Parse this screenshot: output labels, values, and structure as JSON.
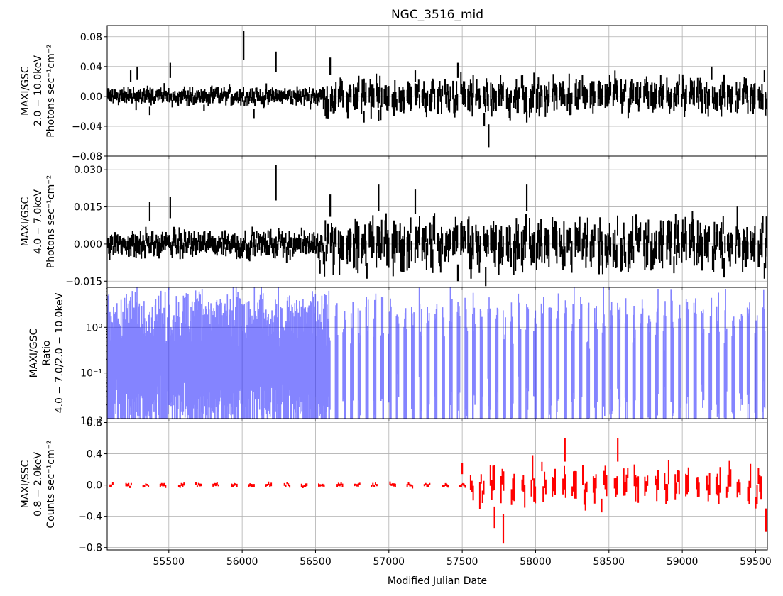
{
  "chart_data": {
    "type": "line",
    "title": "NGC_3516_mid",
    "xlabel": "Modified Julian Date",
    "xlim": [
      55080,
      59580
    ],
    "x_ticks": [
      55500,
      56000,
      56500,
      57000,
      57500,
      58000,
      58500,
      59000,
      59500
    ],
    "x_tick_labels": [
      "55500",
      "56000",
      "56500",
      "57000",
      "57500",
      "58000",
      "58500",
      "59000",
      "59500"
    ],
    "grid": true,
    "panels": [
      {
        "id": "gsc-2-10",
        "ylabel_lines": [
          "MAXI/GSC",
          "2.0 − 10.0keV",
          "Photons sec⁻¹cm⁻²"
        ],
        "ylim": [
          -0.08,
          0.095
        ],
        "y_scale": "linear",
        "y_ticks": [
          0.08,
          0.04,
          0.0,
          -0.04,
          -0.08
        ],
        "y_tick_labels": [
          "0.08",
          "0.04",
          "0.00",
          "−0.04",
          "−0.08"
        ],
        "color": "#000000",
        "style": "errorbar-dense",
        "spikes": [
          [
            55240,
            0.035
          ],
          [
            55285,
            0.04
          ],
          [
            55370,
            -0.025
          ],
          [
            55510,
            0.045
          ],
          [
            55740,
            -0.02
          ],
          [
            56010,
            0.088
          ],
          [
            56080,
            -0.03
          ],
          [
            56230,
            0.06
          ],
          [
            56600,
            0.052
          ],
          [
            56720,
            -0.03
          ],
          [
            56830,
            -0.035
          ],
          [
            56930,
            -0.033
          ],
          [
            57180,
            0.035
          ],
          [
            57470,
            0.045
          ],
          [
            57650,
            -0.04
          ],
          [
            57680,
            -0.068
          ],
          [
            57940,
            -0.035
          ],
          [
            59200,
            0.04
          ],
          [
            59560,
            0.035
          ]
        ],
        "noise_early": 0.006,
        "noise_late": 0.012
      },
      {
        "id": "gsc-4-7",
        "ylabel_lines": [
          "MAXI/GSC",
          "4.0 − 7.0keV",
          "Photons sec⁻¹cm⁻²"
        ],
        "ylim": [
          -0.0175,
          0.0355
        ],
        "y_scale": "linear",
        "y_ticks": [
          0.03,
          0.015,
          0.0,
          -0.015
        ],
        "y_tick_labels": [
          "0.030",
          "0.015",
          "0.000",
          "−0.015"
        ],
        "color": "#000000",
        "style": "errorbar-dense",
        "spikes": [
          [
            55370,
            0.017
          ],
          [
            55510,
            0.019
          ],
          [
            56230,
            0.032
          ],
          [
            56530,
            -0.012
          ],
          [
            56600,
            0.02
          ],
          [
            56850,
            -0.014
          ],
          [
            56930,
            0.024
          ],
          [
            57180,
            0.022
          ],
          [
            57470,
            -0.015
          ],
          [
            57560,
            -0.014
          ],
          [
            57660,
            -0.017
          ],
          [
            57940,
            0.024
          ],
          [
            59560,
            -0.014
          ]
        ],
        "noise_early": 0.0025,
        "noise_late": 0.005
      },
      {
        "id": "ratio",
        "ylabel_lines": [
          "MAXI/GSC",
          "Ratio",
          "4.0 − 7.0/2.0 − 10.0keV"
        ],
        "ylim": [
          0.01,
          7.5
        ],
        "y_scale": "log",
        "y_ticks": [
          1,
          0.1
        ],
        "y_tick_labels": [
          "10⁰",
          "10⁻¹"
        ],
        "bottom_label": "10⁻²",
        "color": "#1f1fff",
        "style": "errorbar-log"
      },
      {
        "id": "ssc-0.8-2",
        "ylabel_lines": [
          "MAXI/SSC",
          "0.8 − 2.0keV",
          "Counts sec⁻¹cm⁻²"
        ],
        "ylim": [
          -0.83,
          0.85
        ],
        "y_scale": "linear",
        "y_ticks": [
          0.8,
          0.4,
          0.0,
          -0.4,
          -0.8
        ],
        "y_tick_labels": [
          "0.8",
          "0.4",
          "0.0",
          "−0.4",
          "−0.8"
        ],
        "color": "#ff0000",
        "style": "errorbar-sparse",
        "spikes": [
          [
            57500,
            0.28
          ],
          [
            57720,
            -0.55
          ],
          [
            57780,
            -0.75
          ],
          [
            58200,
            0.6
          ],
          [
            58560,
            0.6
          ],
          [
            58450,
            -0.35
          ],
          [
            59500,
            -0.3
          ],
          [
            59570,
            -0.6
          ]
        ],
        "noise_early": 0.015,
        "noise_late": 0.12
      }
    ]
  }
}
